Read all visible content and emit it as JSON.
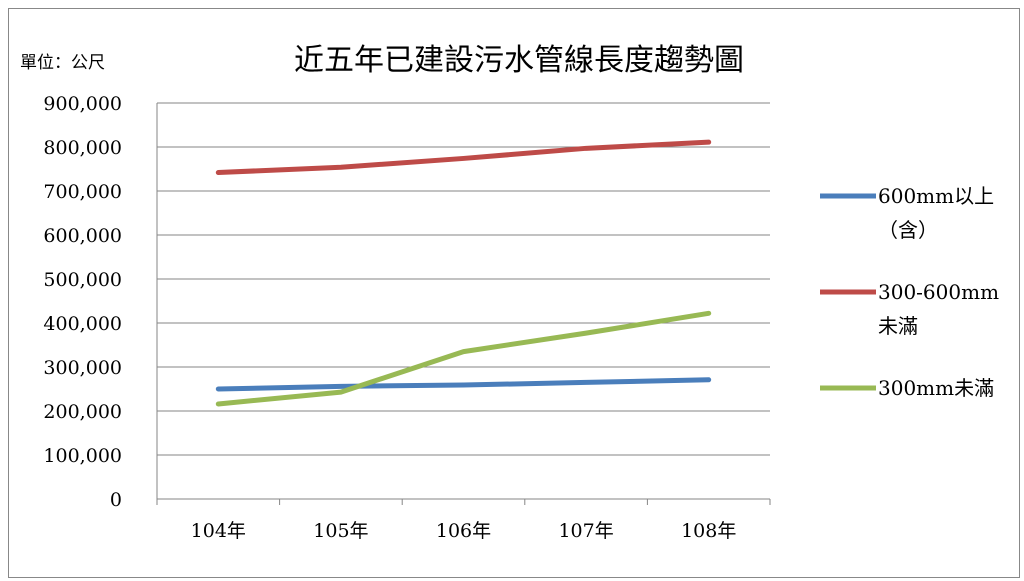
{
  "chart_data": {
    "type": "line",
    "title": "近五年已建設污水管線長度趨勢圖",
    "unit_label": "單位：公尺",
    "categories": [
      "104年",
      "105年",
      "106年",
      "107年",
      "108年"
    ],
    "ylim": [
      0,
      900000
    ],
    "y_ticks": [
      {
        "value": 0,
        "label": "0"
      },
      {
        "value": 100000,
        "label": "100,000"
      },
      {
        "value": 200000,
        "label": "200,000"
      },
      {
        "value": 300000,
        "label": "300,000"
      },
      {
        "value": 400000,
        "label": "400,000"
      },
      {
        "value": 500000,
        "label": "500,000"
      },
      {
        "value": 600000,
        "label": "600,000"
      },
      {
        "value": 700000,
        "label": "700,000"
      },
      {
        "value": 800000,
        "label": "800,000"
      },
      {
        "value": 900000,
        "label": "900,000"
      }
    ],
    "grid": true,
    "legend_position": "right",
    "series": [
      {
        "name": "600mm以上（含）",
        "legend_lines": [
          "600mm以上",
          "（含）"
        ],
        "color": "#4a7ebb",
        "values": [
          250000,
          256000,
          259000,
          265000,
          271000
        ]
      },
      {
        "name": "300-600mm未滿",
        "legend_lines": [
          "300-600mm",
          "未滿"
        ],
        "color": "#be4b48",
        "values": [
          742000,
          754000,
          774000,
          797000,
          811000
        ]
      },
      {
        "name": "300mm未滿",
        "legend_lines": [
          "300mm未滿"
        ],
        "color": "#98b954",
        "values": [
          216000,
          243000,
          335000,
          377000,
          422000
        ]
      }
    ]
  }
}
